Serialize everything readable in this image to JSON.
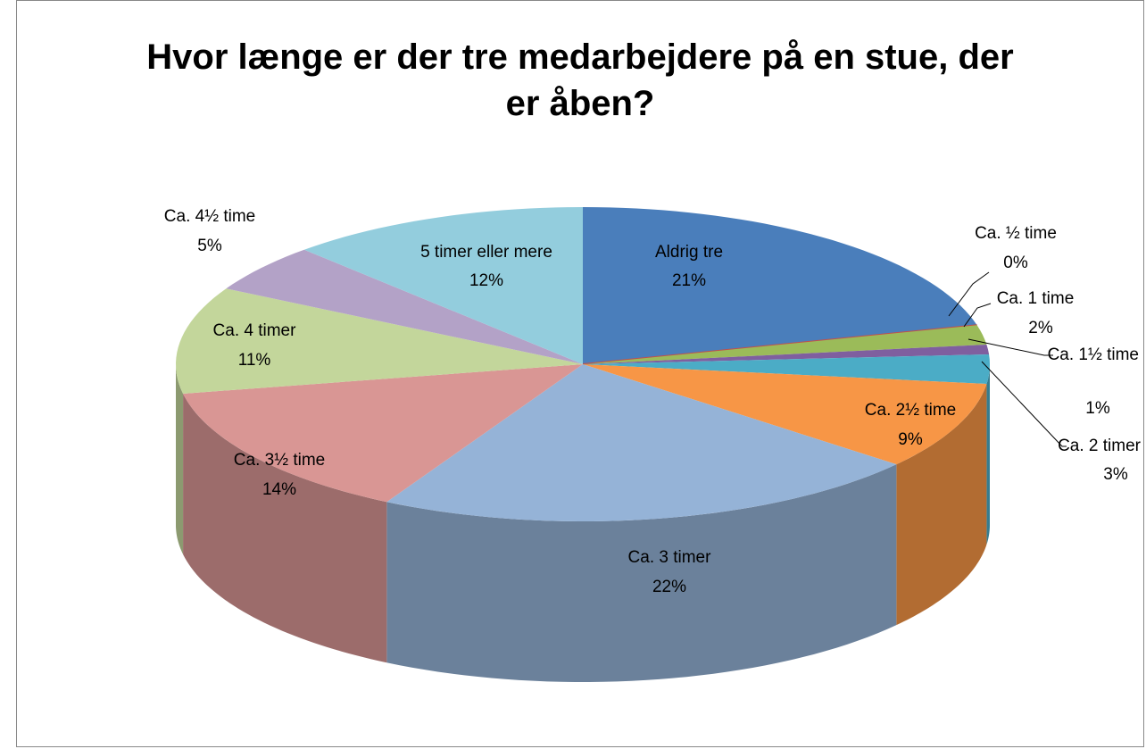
{
  "chart_data": {
    "type": "pie",
    "title": "Hvor længe er der tre medarbejdere på en stue, der er åben?",
    "categories": [
      "Aldrig tre",
      "Ca. ½ time",
      "Ca. 1 time",
      "Ca. 1½ time",
      "Ca. 2 timer",
      "Ca. 2½ time",
      "Ca. 3 timer",
      "Ca. 3½ time",
      "Ca. 4 timer",
      "Ca. 4½ time",
      "5 timer eller mere"
    ],
    "values": [
      21,
      0,
      2,
      1,
      3,
      9,
      22,
      14,
      11,
      5,
      12
    ],
    "value_labels": [
      "21%",
      "0%",
      "2%",
      "1%",
      "3%",
      "9%",
      "22%",
      "14%",
      "11%",
      "5%",
      "12%"
    ],
    "colors": [
      "#4a7ebb",
      "#c0504d",
      "#9bbb59",
      "#7f5f9f",
      "#4bacc6",
      "#f79646",
      "#95b3d7",
      "#d99694",
      "#c3d69b",
      "#b3a2c7",
      "#93cddd"
    ]
  }
}
